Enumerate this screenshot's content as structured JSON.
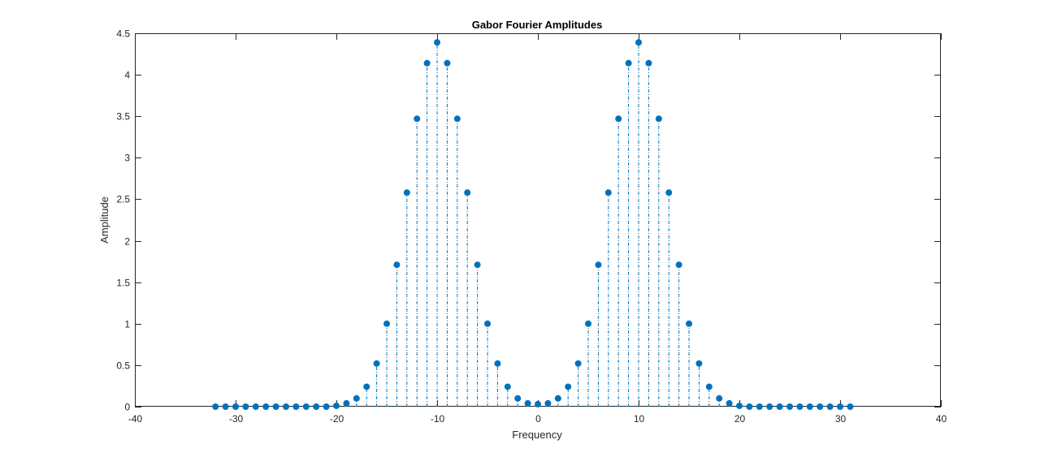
{
  "chart_data": {
    "type": "stem",
    "title": "Gabor Fourier Amplitudes",
    "xlabel": "Frequency",
    "ylabel": "Amplitude",
    "xlim": [
      -40,
      40
    ],
    "ylim": [
      0,
      4.5
    ],
    "xticks": [
      -40,
      -30,
      -20,
      -10,
      0,
      10,
      20,
      30,
      40
    ],
    "xtick_labels": [
      "-40",
      "-30",
      "-20",
      "-10",
      "0",
      "10",
      "20",
      "30",
      "40"
    ],
    "yticks": [
      0,
      0.5,
      1,
      1.5,
      2,
      2.5,
      3,
      3.5,
      4,
      4.5
    ],
    "ytick_labels": [
      "0",
      "0.5",
      "1",
      "1.5",
      "2",
      "2.5",
      "3",
      "3.5",
      "4",
      "4.5"
    ],
    "grid": false,
    "color": "#0072BD",
    "x": [
      -32,
      -31,
      -30,
      -29,
      -28,
      -27,
      -26,
      -25,
      -24,
      -23,
      -22,
      -21,
      -20,
      -19,
      -18,
      -17,
      -16,
      -15,
      -14,
      -13,
      -12,
      -11,
      -10,
      -9,
      -8,
      -7,
      -6,
      -5,
      -4,
      -3,
      -2,
      -1,
      0,
      1,
      2,
      3,
      4,
      5,
      6,
      7,
      8,
      9,
      10,
      11,
      12,
      13,
      14,
      15,
      16,
      17,
      18,
      19,
      20,
      21,
      22,
      23,
      24,
      25,
      26,
      27,
      28,
      29,
      30,
      31
    ],
    "y": [
      0,
      0,
      0,
      0,
      0,
      0,
      0,
      0,
      0,
      0,
      0,
      0,
      0.01,
      0.04,
      0.1,
      0.24,
      0.52,
      1.0,
      1.71,
      2.58,
      3.47,
      4.14,
      4.39,
      4.14,
      3.47,
      2.58,
      1.71,
      1.0,
      0.52,
      0.24,
      0.1,
      0.04,
      0.03,
      0.04,
      0.1,
      0.24,
      0.52,
      1.0,
      1.71,
      2.58,
      3.47,
      4.14,
      4.39,
      4.14,
      3.47,
      2.58,
      1.71,
      1.0,
      0.52,
      0.24,
      0.1,
      0.04,
      0.01,
      0,
      0,
      0,
      0,
      0,
      0,
      0,
      0,
      0,
      0,
      0
    ]
  }
}
